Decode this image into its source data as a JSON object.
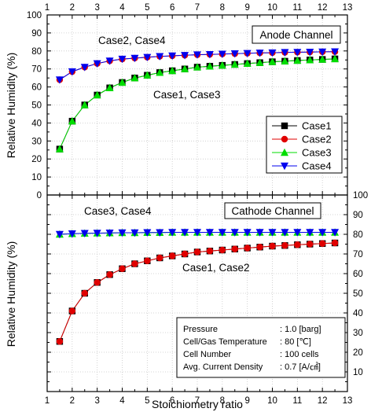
{
  "chart_data": [
    {
      "panel": "top",
      "type": "line",
      "title_box": "Anode Channel",
      "ylabel": "Relative Humidity (%)",
      "ylim": [
        0,
        100
      ],
      "xlim": [
        1,
        13
      ],
      "grid": true,
      "x_ticks_top": [
        "1",
        "2",
        "3",
        "4",
        "5",
        "6",
        "7",
        "8",
        "9",
        "10",
        "11",
        "12",
        "13"
      ],
      "y_ticks_left": [
        "0",
        "10",
        "20",
        "30",
        "40",
        "50",
        "60",
        "70",
        "80",
        "90",
        "100"
      ],
      "x": [
        1.5,
        2,
        2.5,
        3,
        3.5,
        4,
        4.5,
        5,
        5.5,
        6,
        6.5,
        7,
        7.5,
        8,
        8.5,
        9,
        9.5,
        10,
        10.5,
        11,
        11.5,
        12,
        12.5
      ],
      "series": [
        {
          "name": "Case1",
          "color": "#000000",
          "marker": "square",
          "values": [
            25.5,
            41,
            50,
            55.5,
            59.5,
            62.5,
            65,
            66.5,
            68,
            69,
            70,
            71,
            71.5,
            72,
            72.5,
            73,
            73.5,
            74,
            74.3,
            74.7,
            75,
            75.3,
            75.6
          ]
        },
        {
          "name": "Case2",
          "color": "#e00000",
          "marker": "circle",
          "values": [
            64,
            68.5,
            71,
            73,
            74.5,
            75.5,
            76,
            76.5,
            77,
            77.3,
            77.6,
            77.9,
            78.1,
            78.3,
            78.5,
            78.7,
            78.9,
            79,
            79.2,
            79.3,
            79.4,
            79.5,
            79.6
          ]
        },
        {
          "name": "Case3",
          "color": "#00dd00",
          "marker": "triangle-up",
          "values": [
            25.5,
            41,
            50,
            55.5,
            59.5,
            62.5,
            65,
            66.5,
            68,
            69,
            70,
            71,
            71.5,
            72,
            72.5,
            73,
            73.5,
            74,
            74.3,
            74.7,
            75,
            75.3,
            75.6
          ]
        },
        {
          "name": "Case4",
          "color": "#0000ee",
          "marker": "triangle-down",
          "values": [
            64,
            68.5,
            71,
            73,
            74.5,
            75.5,
            76,
            76.5,
            77,
            77.3,
            77.6,
            77.9,
            78.1,
            78.3,
            78.5,
            78.7,
            78.9,
            79,
            79.2,
            79.3,
            79.4,
            79.5,
            79.6
          ]
        }
      ],
      "annotations": [
        "Case2, Case4",
        "Case1, Case3"
      ],
      "legend": {
        "placement": "right",
        "entries": [
          "Case1",
          "Case2",
          "Case3",
          "Case4"
        ]
      }
    },
    {
      "panel": "bottom",
      "type": "line",
      "title_box": "Cathode Channel",
      "xlabel": "Stoichiometry ratio",
      "ylabel": "Relative Humidity (%)",
      "ylim": [
        0,
        100
      ],
      "xlim": [
        1,
        13
      ],
      "grid": true,
      "x_ticks_bottom": [
        "1",
        "2",
        "3",
        "4",
        "5",
        "6",
        "7",
        "8",
        "9",
        "10",
        "11",
        "12",
        "13"
      ],
      "y_ticks_right": [
        "10",
        "20",
        "30",
        "40",
        "50",
        "60",
        "70",
        "80",
        "90",
        "100"
      ],
      "x": [
        1.5,
        2,
        2.5,
        3,
        3.5,
        4,
        4.5,
        5,
        5.5,
        6,
        6.5,
        7,
        7.5,
        8,
        8.5,
        9,
        9.5,
        10,
        10.5,
        11,
        11.5,
        12,
        12.5
      ],
      "series": [
        {
          "name": "Case1",
          "color": "#000000",
          "marker": "square",
          "values": [
            25.5,
            41,
            50,
            55.5,
            59.5,
            62.5,
            65,
            66.5,
            68,
            69,
            70,
            71,
            71.5,
            72,
            72.5,
            73,
            73.5,
            74,
            74.3,
            74.7,
            75,
            75.3,
            75.6
          ]
        },
        {
          "name": "Case2",
          "color": "#e00000",
          "marker": "circle",
          "values": [
            25.5,
            41,
            50,
            55.5,
            59.5,
            62.5,
            65,
            66.5,
            68,
            69,
            70,
            71,
            71.5,
            72,
            72.5,
            73,
            73.5,
            74,
            74.3,
            74.7,
            75,
            75.3,
            75.6
          ]
        },
        {
          "name": "Case3",
          "color": "#00dd00",
          "marker": "triangle-up",
          "values": [
            80,
            80.3,
            80.5,
            80.6,
            80.7,
            80.8,
            80.8,
            80.9,
            80.9,
            81,
            81,
            81,
            81,
            81,
            81,
            81,
            81,
            81,
            81,
            81,
            81,
            81,
            81
          ]
        },
        {
          "name": "Case4",
          "color": "#0000ee",
          "marker": "triangle-down",
          "values": [
            80,
            80.3,
            80.5,
            80.6,
            80.7,
            80.8,
            80.8,
            80.9,
            80.9,
            81,
            81,
            81,
            81,
            81,
            81,
            81,
            81,
            81,
            81,
            81,
            81,
            81,
            81
          ]
        }
      ],
      "annotations": [
        "Case3, Case4",
        "Case1, Case2"
      ],
      "info": [
        {
          "label": "Pressure",
          "value": ": 1.0 [barg]"
        },
        {
          "label": "Cell/Gas Temperature",
          "value": ": 80 [℃]"
        },
        {
          "label": "Cell Number",
          "value": ": 100 cells"
        },
        {
          "label": "Avg. Current Density",
          "value": ": 0.7 [A/㎠]"
        }
      ]
    }
  ]
}
